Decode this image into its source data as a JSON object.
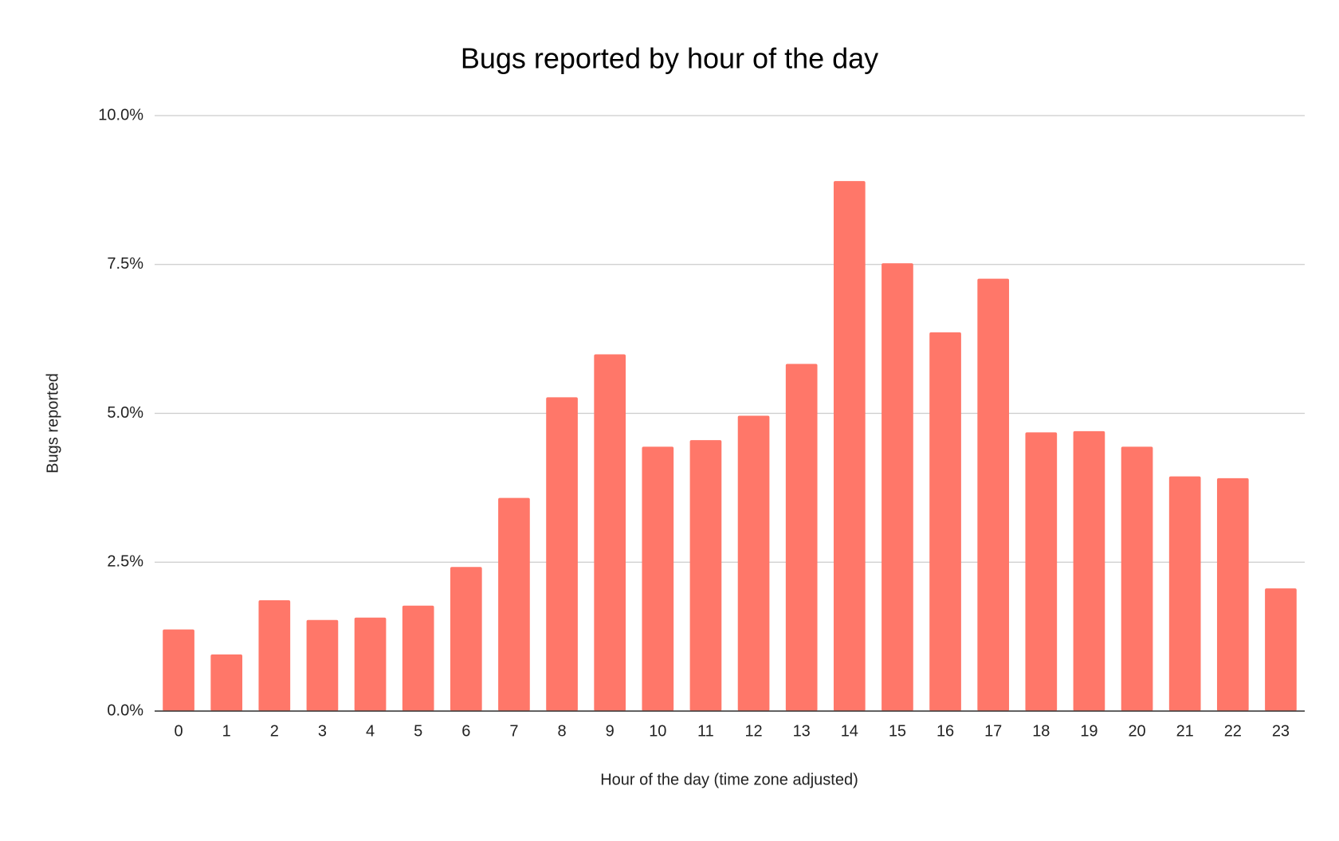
{
  "chart_data": {
    "type": "bar",
    "title": "Bugs reported by hour of the day",
    "x_label": "Hour of the day (time zone adjusted)",
    "y_label": "Bugs reported",
    "categories": [
      "0",
      "1",
      "2",
      "3",
      "4",
      "5",
      "6",
      "7",
      "8",
      "9",
      "10",
      "11",
      "12",
      "13",
      "14",
      "15",
      "16",
      "17",
      "18",
      "19",
      "20",
      "21",
      "22",
      "23"
    ],
    "values": [
      1.37,
      0.95,
      1.86,
      1.53,
      1.57,
      1.77,
      2.42,
      3.58,
      5.27,
      5.99,
      4.44,
      4.55,
      4.96,
      5.83,
      8.9,
      7.52,
      6.36,
      7.26,
      4.68,
      4.7,
      4.44,
      3.94,
      3.91,
      2.06
    ],
    "color": "#ff7769",
    "ylim": [
      0,
      10
    ],
    "yticks": [
      {
        "value": 0,
        "label": "0.0%"
      },
      {
        "value": 2.5,
        "label": "2.5%"
      },
      {
        "value": 5,
        "label": "5.0%"
      },
      {
        "value": 7.5,
        "label": "7.5%"
      },
      {
        "value": 10,
        "label": "10.0%"
      }
    ],
    "grid": true
  }
}
